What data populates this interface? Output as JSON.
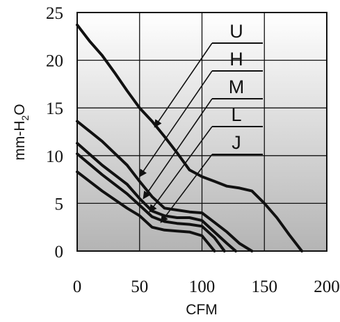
{
  "chart_data": {
    "type": "line",
    "xlabel": "CFM",
    "ylabel": "mm-H",
    "ylabel_subscript": "2",
    "ylabel_suffix": "O",
    "xlim": [
      0,
      200
    ],
    "ylim": [
      0,
      25
    ],
    "x_ticks": [
      "0",
      "50",
      "100",
      "150",
      "200"
    ],
    "y_ticks": [
      "0",
      "5",
      "10",
      "15",
      "20",
      "25"
    ],
    "grid": true,
    "series": [
      {
        "name": "U",
        "points": [
          [
            0,
            23.7
          ],
          [
            10,
            22
          ],
          [
            20,
            20.5
          ],
          [
            30,
            18.7
          ],
          [
            40,
            16.8
          ],
          [
            50,
            15
          ],
          [
            60,
            13.6
          ],
          [
            70,
            12
          ],
          [
            80,
            10.3
          ],
          [
            90,
            8.5
          ],
          [
            100,
            7.8
          ],
          [
            110,
            7.3
          ],
          [
            120,
            6.8
          ],
          [
            130,
            6.6
          ],
          [
            140,
            6.3
          ],
          [
            150,
            5
          ],
          [
            160,
            3.5
          ],
          [
            170,
            1.7
          ],
          [
            180,
            0
          ]
        ]
      },
      {
        "name": "H",
        "points": [
          [
            0,
            13.6
          ],
          [
            20,
            11.5
          ],
          [
            40,
            9
          ],
          [
            50,
            7.3
          ],
          [
            60,
            5.7
          ],
          [
            70,
            4.5
          ],
          [
            80,
            4.3
          ],
          [
            90,
            4.1
          ],
          [
            100,
            4
          ],
          [
            110,
            3
          ],
          [
            120,
            2
          ],
          [
            130,
            0.8
          ],
          [
            140,
            0
          ]
        ]
      },
      {
        "name": "M",
        "points": [
          [
            0,
            11.3
          ],
          [
            20,
            9
          ],
          [
            40,
            7
          ],
          [
            50,
            5.5
          ],
          [
            60,
            4.2
          ],
          [
            70,
            3.7
          ],
          [
            80,
            3.5
          ],
          [
            90,
            3.5
          ],
          [
            100,
            3.2
          ],
          [
            110,
            2
          ],
          [
            120,
            0.8
          ],
          [
            127,
            0
          ]
        ]
      },
      {
        "name": "L",
        "points": [
          [
            0,
            10.2
          ],
          [
            20,
            8
          ],
          [
            40,
            6
          ],
          [
            50,
            4.8
          ],
          [
            60,
            3.6
          ],
          [
            70,
            3.1
          ],
          [
            80,
            2.9
          ],
          [
            90,
            2.8
          ],
          [
            100,
            2.6
          ],
          [
            110,
            1.4
          ],
          [
            118,
            0
          ]
        ]
      },
      {
        "name": "J",
        "points": [
          [
            0,
            8.3
          ],
          [
            20,
            6.3
          ],
          [
            40,
            4.5
          ],
          [
            50,
            3.7
          ],
          [
            60,
            2.5
          ],
          [
            70,
            2.2
          ],
          [
            80,
            2.1
          ],
          [
            90,
            2.0
          ],
          [
            100,
            1.6
          ],
          [
            105,
            0.8
          ],
          [
            110,
            0
          ]
        ]
      }
    ],
    "annotations": [
      {
        "label": "U",
        "target": [
          62,
          13
        ]
      },
      {
        "label": "H",
        "target": [
          50,
          7.8
        ]
      },
      {
        "label": "M",
        "target": [
          53,
          5.5
        ]
      },
      {
        "label": "L",
        "target": [
          58,
          4.1
        ]
      },
      {
        "label": "J",
        "target": [
          67,
          3.0
        ]
      }
    ]
  }
}
